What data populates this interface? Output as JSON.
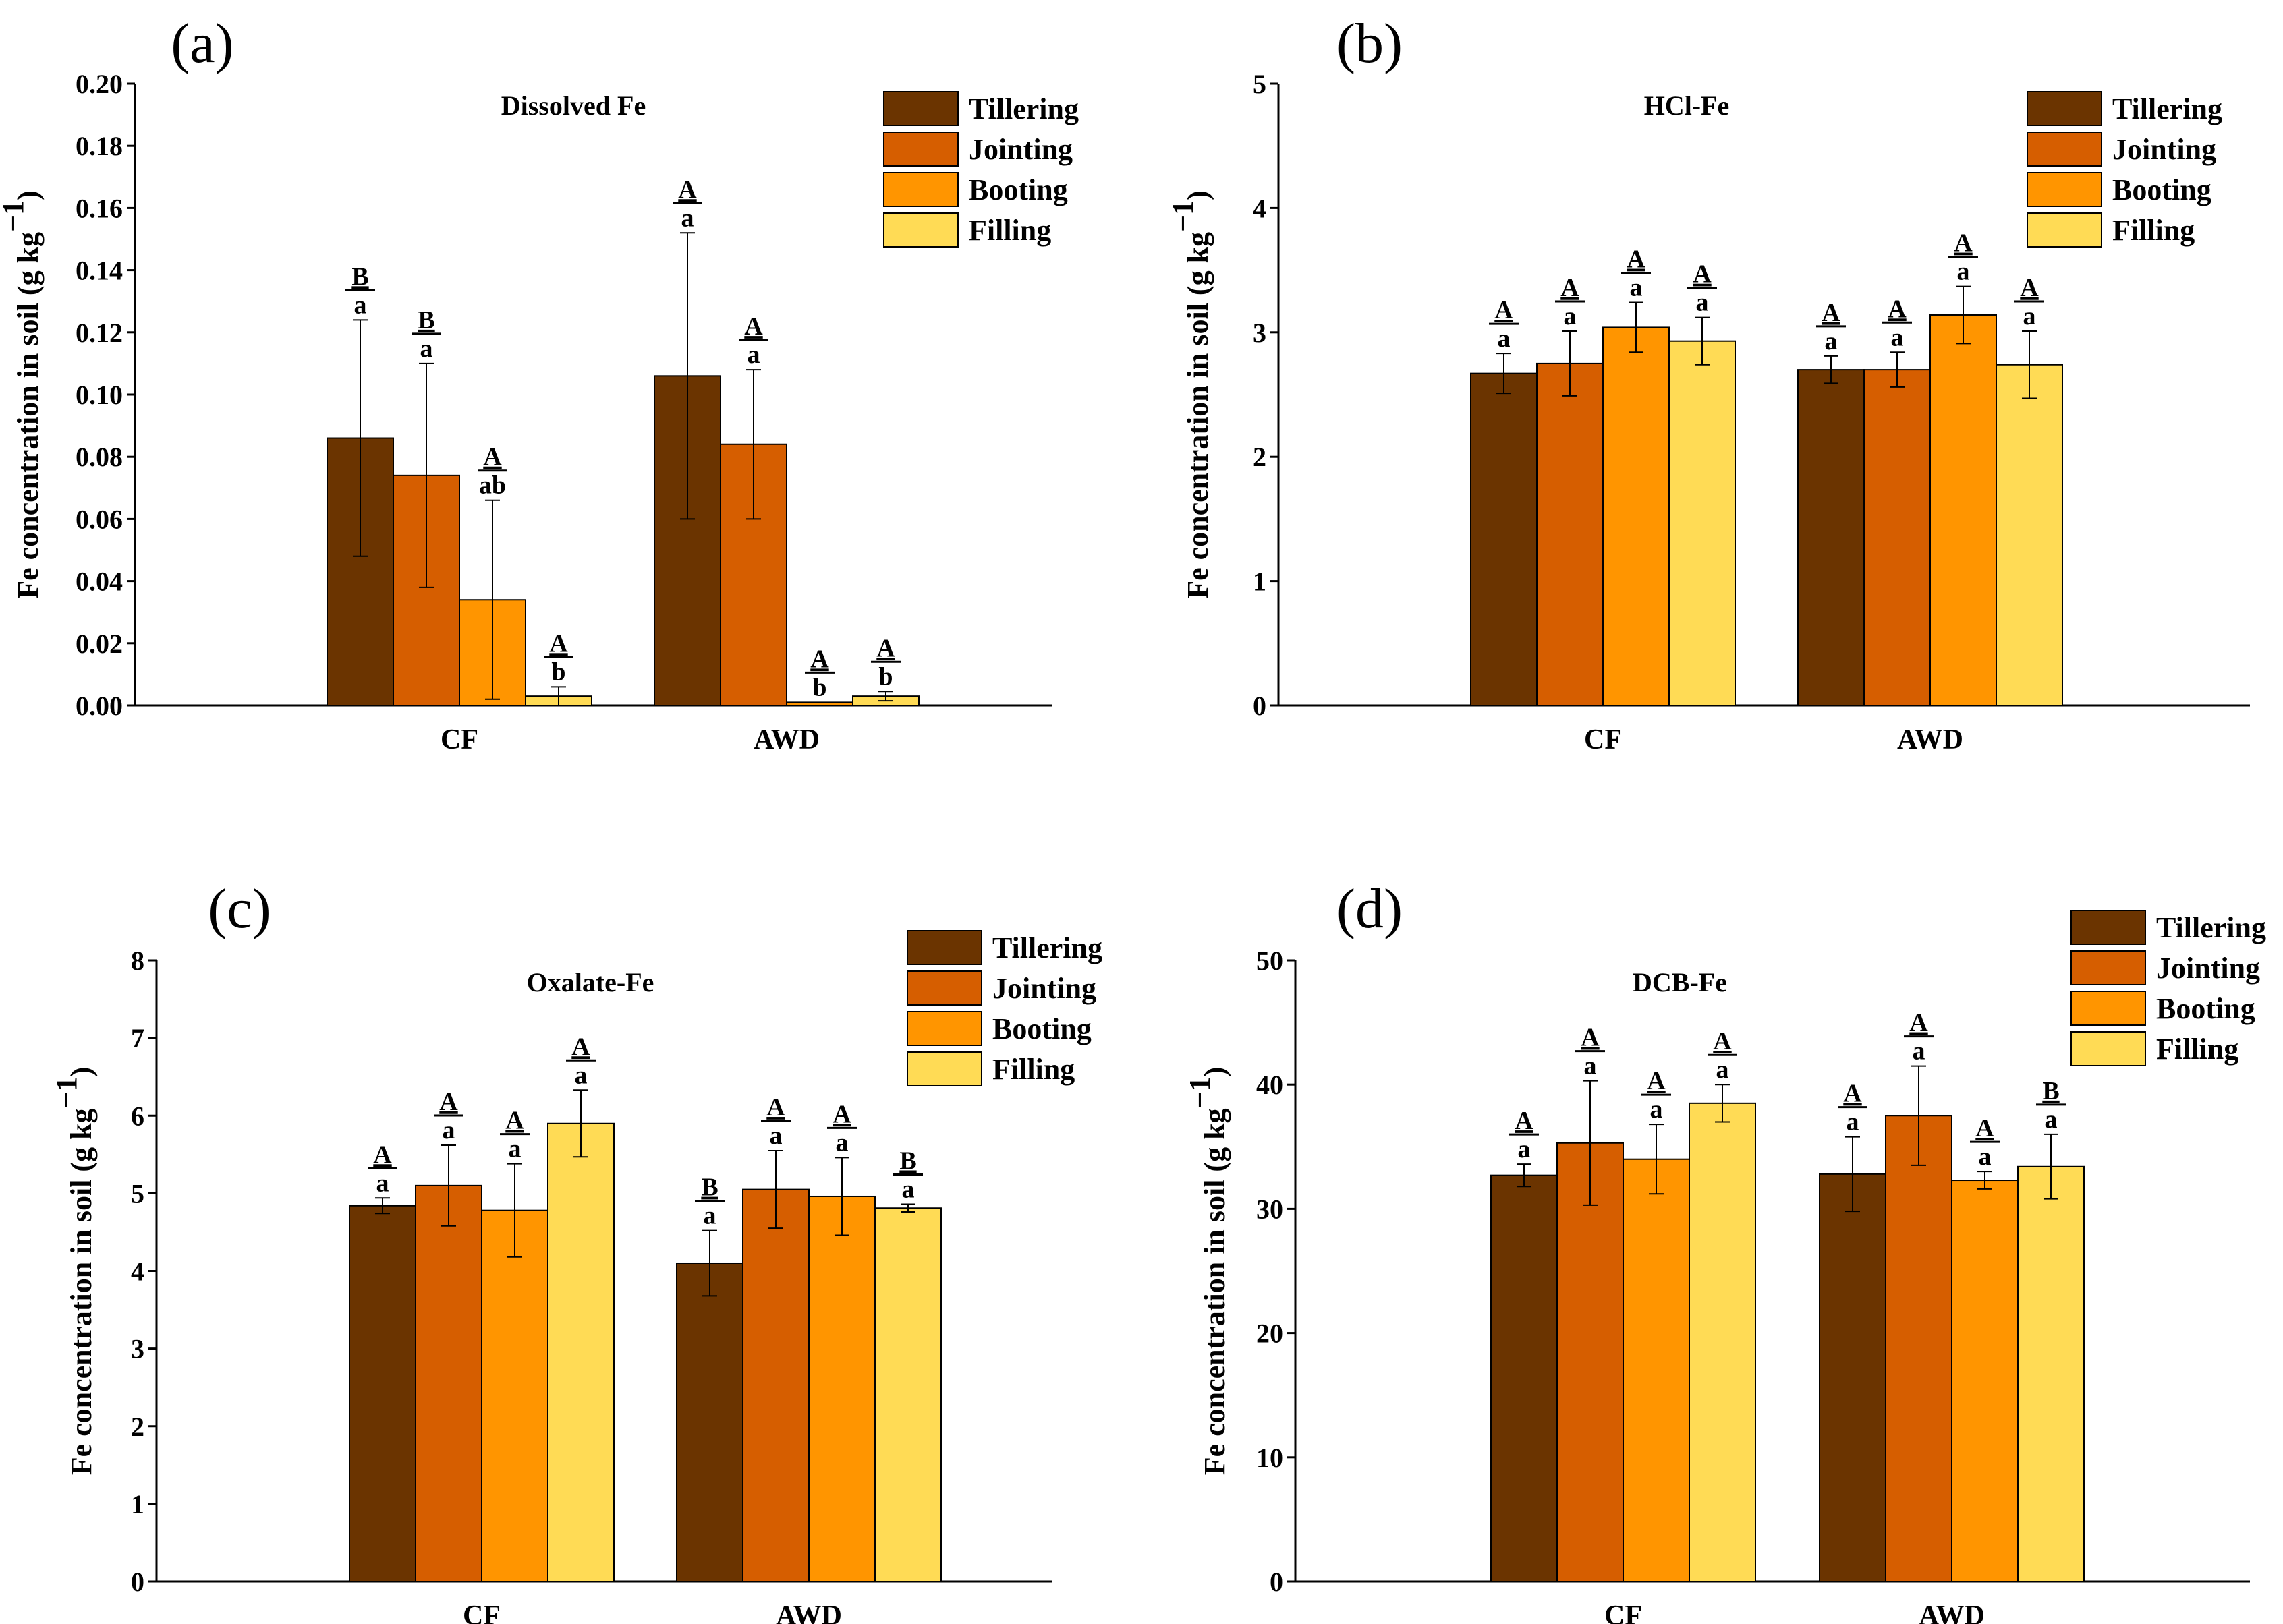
{
  "legend_entries": [
    "Tillering",
    "Jointing",
    "Booting",
    "Filling"
  ],
  "colors": {
    "Tillering": "#6b3400",
    "Jointing": "#d65e00",
    "Booting": "#ff9500",
    "Filling": "#ffdb55"
  },
  "chart_data": [
    {
      "type": "bar",
      "panel_label": "(a)",
      "title": "Dissolved Fe",
      "ylabel": "Fe concentration in soil (g kg",
      "ylabel_sup": "−1",
      "ylabel_close": ")",
      "categories": [
        "CF",
        "AWD"
      ],
      "ylim": [
        0,
        0.2
      ],
      "yticks": [
        "0.00",
        "0.02",
        "0.04",
        "0.06",
        "0.08",
        "0.10",
        "0.12",
        "0.14",
        "0.16",
        "0.18",
        "0.20"
      ],
      "legend_position": "top-right",
      "series": [
        {
          "name": "Tillering",
          "values": [
            0.086,
            0.106
          ],
          "errors": [
            0.038,
            0.046
          ],
          "upper": [
            "B",
            "A"
          ],
          "lower": [
            "a",
            "a"
          ]
        },
        {
          "name": "Jointing",
          "values": [
            0.074,
            0.084
          ],
          "errors": [
            0.036,
            0.024
          ],
          "upper": [
            "B",
            "A"
          ],
          "lower": [
            "a",
            "a"
          ]
        },
        {
          "name": "Booting",
          "values": [
            0.034,
            0.001
          ],
          "errors": [
            0.032,
            0.0
          ],
          "upper": [
            "A",
            "A"
          ],
          "lower": [
            "ab",
            "b"
          ]
        },
        {
          "name": "Filling",
          "values": [
            0.003,
            0.003
          ],
          "errors": [
            0.003,
            0.0015
          ],
          "upper": [
            "A",
            "A"
          ],
          "lower": [
            "b",
            "b"
          ]
        }
      ]
    },
    {
      "type": "bar",
      "panel_label": "(b)",
      "title": "HCl-Fe",
      "ylabel": "Fe concentration in soil (g kg",
      "ylabel_sup": "−1",
      "ylabel_close": ")",
      "categories": [
        "CF",
        "AWD"
      ],
      "ylim": [
        0,
        5
      ],
      "yticks": [
        "0",
        "1",
        "2",
        "3",
        "4",
        "5"
      ],
      "legend_position": "top-right",
      "series": [
        {
          "name": "Tillering",
          "values": [
            2.67,
            2.7
          ],
          "errors": [
            0.16,
            0.11
          ],
          "upper": [
            "A",
            "A"
          ],
          "lower": [
            "a",
            "a"
          ]
        },
        {
          "name": "Jointing",
          "values": [
            2.75,
            2.7
          ],
          "errors": [
            0.26,
            0.14
          ],
          "upper": [
            "A",
            "A"
          ],
          "lower": [
            "a",
            "a"
          ]
        },
        {
          "name": "Booting",
          "values": [
            3.04,
            3.14
          ],
          "errors": [
            0.2,
            0.23
          ],
          "upper": [
            "A",
            "A"
          ],
          "lower": [
            "a",
            "a"
          ]
        },
        {
          "name": "Filling",
          "values": [
            2.93,
            2.74
          ],
          "errors": [
            0.19,
            0.27
          ],
          "upper": [
            "A",
            "A"
          ],
          "lower": [
            "a",
            "a"
          ]
        }
      ]
    },
    {
      "type": "bar",
      "panel_label": "(c)",
      "title": "Oxalate-Fe",
      "ylabel": "Fe concentration in soil (g kg",
      "ylabel_sup": "−1",
      "ylabel_close": ")",
      "categories": [
        "CF",
        "AWD"
      ],
      "ylim": [
        0,
        8
      ],
      "yticks": [
        "0",
        "1",
        "2",
        "3",
        "4",
        "5",
        "6",
        "7",
        "8"
      ],
      "legend_position": "top-right",
      "series": [
        {
          "name": "Tillering",
          "values": [
            4.84,
            4.1
          ],
          "errors": [
            0.1,
            0.42
          ],
          "upper": [
            "A",
            "B"
          ],
          "lower": [
            "a",
            "a"
          ]
        },
        {
          "name": "Jointing",
          "values": [
            5.1,
            5.05
          ],
          "errors": [
            0.52,
            0.5
          ],
          "upper": [
            "A",
            "A"
          ],
          "lower": [
            "a",
            "a"
          ]
        },
        {
          "name": "Booting",
          "values": [
            4.78,
            4.96
          ],
          "errors": [
            0.6,
            0.5
          ],
          "upper": [
            "A",
            "A"
          ],
          "lower": [
            "a",
            "a"
          ]
        },
        {
          "name": "Filling",
          "values": [
            5.9,
            4.81
          ],
          "errors": [
            0.43,
            0.05
          ],
          "upper": [
            "A",
            "B"
          ],
          "lower": [
            "a",
            "a"
          ]
        }
      ]
    },
    {
      "type": "bar",
      "panel_label": "(d)",
      "title": "DCB-Fe",
      "ylabel": "Fe concentration in soil (g kg",
      "ylabel_sup": "−1",
      "ylabel_close": ")",
      "categories": [
        "CF",
        "AWD"
      ],
      "ylim": [
        0,
        50
      ],
      "yticks": [
        "0",
        "10",
        "20",
        "30",
        "40",
        "50"
      ],
      "legend_position": "top-right",
      "series": [
        {
          "name": "Tillering",
          "values": [
            32.7,
            32.8
          ],
          "errors": [
            0.9,
            3.0
          ],
          "upper": [
            "A",
            "A"
          ],
          "lower": [
            "a",
            "a"
          ]
        },
        {
          "name": "Jointing",
          "values": [
            35.3,
            37.5
          ],
          "errors": [
            5.0,
            4.0
          ],
          "upper": [
            "A",
            "A"
          ],
          "lower": [
            "a",
            "a"
          ]
        },
        {
          "name": "Booting",
          "values": [
            34.0,
            32.3
          ],
          "errors": [
            2.8,
            0.7
          ],
          "upper": [
            "A",
            "A"
          ],
          "lower": [
            "a",
            "a"
          ]
        },
        {
          "name": "Filling",
          "values": [
            38.5,
            33.4
          ],
          "errors": [
            1.5,
            2.6
          ],
          "upper": [
            "A",
            "B"
          ],
          "lower": [
            "a",
            "a"
          ]
        }
      ]
    }
  ]
}
